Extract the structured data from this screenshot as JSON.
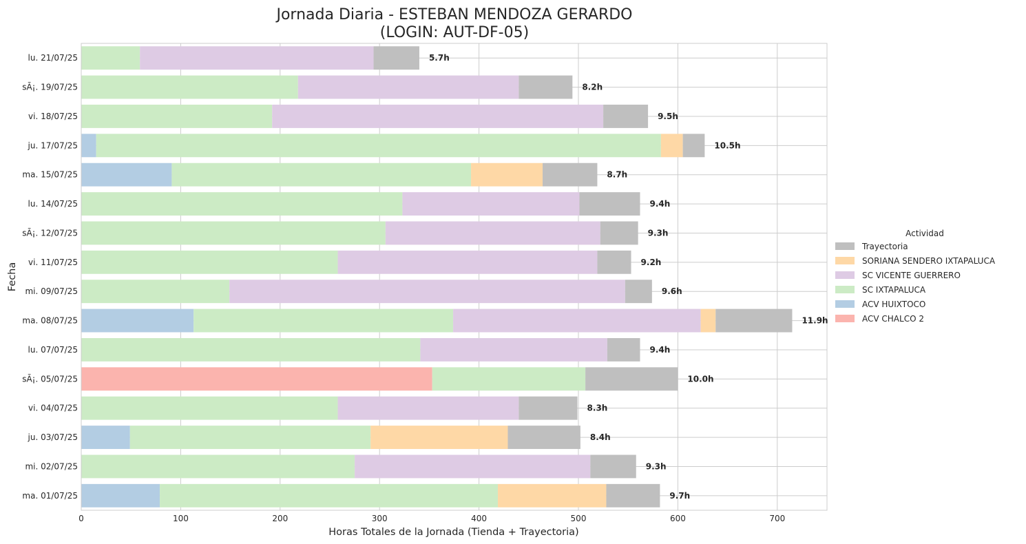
{
  "chart_data": {
    "type": "bar",
    "orientation": "horizontal",
    "stacked": true,
    "title_line1": "Jornada Diaria - ESTEBAN MENDOZA GERARDO",
    "title_line2": "(LOGIN: AUT-DF-05)",
    "xlabel": "Horas Totales de la Jornada (Tienda + Trayectoria)",
    "ylabel": "Fecha",
    "xlim": [
      0,
      750
    ],
    "xticks": [
      0,
      100,
      200,
      300,
      400,
      500,
      600,
      700
    ],
    "grid": true,
    "legend": {
      "title": "Actividad",
      "placement": "right",
      "entries": [
        {
          "name": "Trayectoria",
          "color": "#bfbfbf"
        },
        {
          "name": "SORIANA SENDERO IXTAPALUCA",
          "color": "#fed8a6"
        },
        {
          "name": "SC VICENTE GUERRERO",
          "color": "#decbe4"
        },
        {
          "name": "SC IXTAPALUCA",
          "color": "#ccebc5"
        },
        {
          "name": "ACV HUIXTOCO",
          "color": "#b3cde3"
        },
        {
          "name": "ACV CHALCO 2",
          "color": "#fbb4ae"
        }
      ]
    },
    "segment_order": [
      "ACV CHALCO 2",
      "ACV HUIXTOCO",
      "SC IXTAPALUCA",
      "SC VICENTE GUERRERO",
      "SORIANA SENDERO IXTAPALUCA",
      "Trayectoria"
    ],
    "rows": [
      {
        "date": "lu. 21/07/25",
        "total_label": "5.7h",
        "segments": {
          "SC IXTAPALUCA": 59,
          "SC VICENTE GUERRERO": 235,
          "Trayectoria": 46
        }
      },
      {
        "date": "sÃ¡. 19/07/25",
        "total_label": "8.2h",
        "segments": {
          "SC IXTAPALUCA": 218,
          "SC VICENTE GUERRERO": 222,
          "Trayectoria": 54
        }
      },
      {
        "date": "vi. 18/07/25",
        "total_label": "9.5h",
        "segments": {
          "SC IXTAPALUCA": 192,
          "SC VICENTE GUERRERO": 333,
          "Trayectoria": 45
        }
      },
      {
        "date": "ju. 17/07/25",
        "total_label": "10.5h",
        "segments": {
          "ACV HUIXTOCO": 15,
          "SC IXTAPALUCA": 568,
          "SORIANA SENDERO IXTAPALUCA": 22,
          "Trayectoria": 22
        }
      },
      {
        "date": "ma. 15/07/25",
        "total_label": "8.7h",
        "segments": {
          "ACV HUIXTOCO": 91,
          "SC IXTAPALUCA": 301,
          "SORIANA SENDERO IXTAPALUCA": 72,
          "Trayectoria": 55
        }
      },
      {
        "date": "lu. 14/07/25",
        "total_label": "9.4h",
        "segments": {
          "SC IXTAPALUCA": 323,
          "SC VICENTE GUERRERO": 178,
          "Trayectoria": 61
        }
      },
      {
        "date": "sÃ¡. 12/07/25",
        "total_label": "9.3h",
        "segments": {
          "SC IXTAPALUCA": 306,
          "SC VICENTE GUERRERO": 216,
          "Trayectoria": 38
        }
      },
      {
        "date": "vi. 11/07/25",
        "total_label": "9.2h",
        "segments": {
          "SC IXTAPALUCA": 258,
          "SC VICENTE GUERRERO": 261,
          "Trayectoria": 34
        }
      },
      {
        "date": "mi. 09/07/25",
        "total_label": "9.6h",
        "segments": {
          "SC IXTAPALUCA": 149,
          "SC VICENTE GUERRERO": 398,
          "Trayectoria": 27
        }
      },
      {
        "date": "ma. 08/07/25",
        "total_label": "11.9h",
        "segments": {
          "ACV HUIXTOCO": 113,
          "SC IXTAPALUCA": 261,
          "SC VICENTE GUERRERO": 249,
          "SORIANA SENDERO IXTAPALUCA": 15,
          "Trayectoria": 77
        }
      },
      {
        "date": "lu. 07/07/25",
        "total_label": "9.4h",
        "segments": {
          "SC IXTAPALUCA": 341,
          "SC VICENTE GUERRERO": 188,
          "Trayectoria": 33
        }
      },
      {
        "date": "sÃ¡. 05/07/25",
        "total_label": "10.0h",
        "segments": {
          "ACV CHALCO 2": 353,
          "SC IXTAPALUCA": 154,
          "Trayectoria": 93
        }
      },
      {
        "date": "vi. 04/07/25",
        "total_label": "8.3h",
        "segments": {
          "SC IXTAPALUCA": 258,
          "SC VICENTE GUERRERO": 182,
          "Trayectoria": 59
        }
      },
      {
        "date": "ju. 03/07/25",
        "total_label": "8.4h",
        "segments": {
          "ACV HUIXTOCO": 49,
          "SC IXTAPALUCA": 242,
          "SORIANA SENDERO IXTAPALUCA": 138,
          "Trayectoria": 73
        }
      },
      {
        "date": "mi. 02/07/25",
        "total_label": "9.3h",
        "segments": {
          "SC IXTAPALUCA": 275,
          "SC VICENTE GUERRERO": 237,
          "Trayectoria": 46
        }
      },
      {
        "date": "ma. 01/07/25",
        "total_label": "9.7h",
        "segments": {
          "ACV HUIXTOCO": 79,
          "SC IXTAPALUCA": 340,
          "SORIANA SENDERO IXTAPALUCA": 109,
          "Trayectoria": 54
        }
      }
    ]
  }
}
